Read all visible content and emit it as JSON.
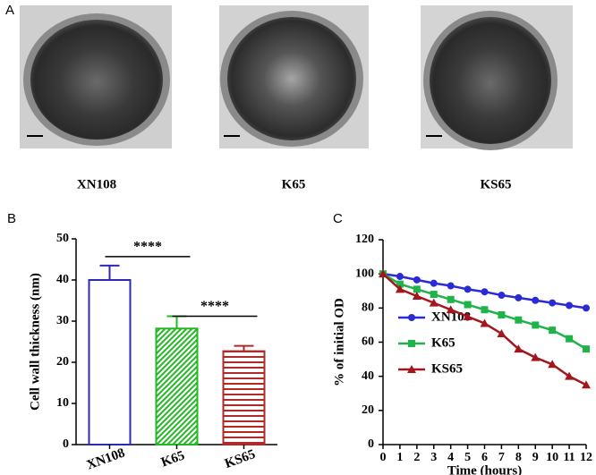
{
  "panel_a": {
    "letter": "A",
    "labels": [
      "XN108",
      "K65",
      "KS65"
    ]
  },
  "chart_data": [
    {
      "type": "bar",
      "letter": "B",
      "ylabel": "Cell wall thickness (nm)",
      "categories": [
        "XN108",
        "K65",
        "KS65"
      ],
      "values": [
        40,
        28.2,
        22.7
      ],
      "errors": [
        3.5,
        3,
        1.3
      ],
      "colors": [
        "#2a2ab4",
        "#22b822",
        "#b02a2a"
      ],
      "hatch": [
        "none",
        "diagonal",
        "horizontal"
      ],
      "annotations": [
        {
          "text": "****",
          "from": 0,
          "to": 1
        },
        {
          "text": "****",
          "from": 1,
          "to": 2
        }
      ],
      "ylim": [
        0,
        50
      ],
      "yticks": [
        0,
        10,
        20,
        30,
        40,
        50
      ]
    },
    {
      "type": "line",
      "letter": "C",
      "xlabel": "Time (hours)",
      "ylabel": "% of initial OD",
      "x": [
        0,
        1,
        2,
        3,
        4,
        5,
        6,
        7,
        8,
        9,
        10,
        11,
        12
      ],
      "series": [
        {
          "name": "XN108",
          "color": "#2b2bd6",
          "marker": "circle",
          "values": [
            100,
            98.5,
            96.5,
            94.5,
            93,
            91,
            89.5,
            87.5,
            86,
            84.5,
            83,
            81.5,
            80
          ]
        },
        {
          "name": "K65",
          "color": "#1fb34a",
          "marker": "square",
          "values": [
            100,
            94,
            91,
            88,
            85,
            82,
            79,
            76,
            73,
            70,
            67,
            62,
            56
          ]
        },
        {
          "name": "KS65",
          "color": "#a3161c",
          "marker": "triangle",
          "values": [
            100,
            91,
            87,
            83,
            79,
            75,
            71,
            65,
            56,
            51,
            47,
            40,
            35
          ]
        }
      ],
      "xlim": [
        0,
        12
      ],
      "xticks": [
        0,
        1,
        2,
        3,
        4,
        5,
        6,
        7,
        8,
        9,
        10,
        11,
        12
      ],
      "ylim": [
        0,
        120
      ],
      "yticks": [
        0,
        20,
        40,
        60,
        80,
        100,
        120
      ]
    }
  ]
}
